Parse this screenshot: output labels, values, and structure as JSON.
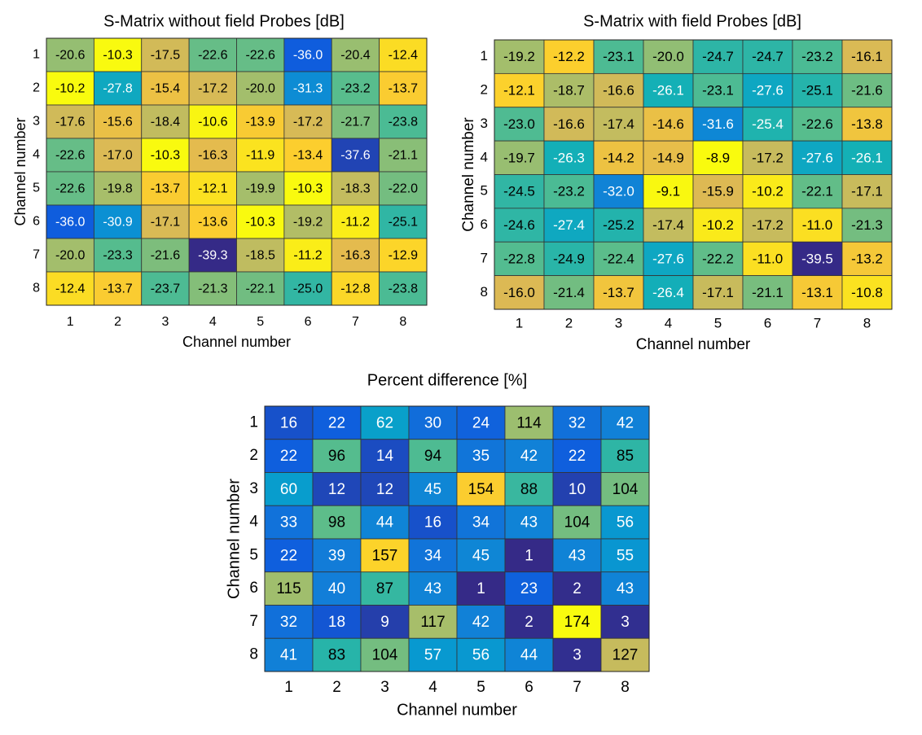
{
  "chart_data": [
    {
      "type": "heatmap",
      "title": "S-Matrix without field Probes [dB]",
      "xlabel": "Channel number",
      "ylabel": "Channel number",
      "x": [
        1,
        2,
        3,
        4,
        5,
        6,
        7,
        8
      ],
      "y": [
        1,
        2,
        3,
        4,
        5,
        6,
        7,
        8
      ],
      "colormap": [
        "#352a87",
        "#0f5cdd",
        "#127dd8",
        "#079ccf",
        "#15b1b4",
        "#59bd8c",
        "#a5be6b",
        "#e1b952",
        "#fcce2e",
        "#f9fb0e"
      ],
      "values": [
        [
          -20.6,
          -10.3,
          -17.5,
          -22.6,
          -22.6,
          -36.0,
          -20.4,
          -12.4
        ],
        [
          -10.2,
          -27.8,
          -15.4,
          -17.2,
          -20.0,
          -31.3,
          -23.2,
          -13.7
        ],
        [
          -17.6,
          -15.6,
          -18.4,
          -10.6,
          -13.9,
          -17.2,
          -21.7,
          -23.8
        ],
        [
          -22.6,
          -17.0,
          -10.3,
          -16.3,
          -11.9,
          -13.4,
          -37.6,
          -21.1
        ],
        [
          -22.6,
          -19.8,
          -13.7,
          -12.1,
          -19.9,
          -10.3,
          -18.3,
          -22.0
        ],
        [
          -36.0,
          -30.9,
          -17.1,
          -13.6,
          -10.3,
          -19.2,
          -11.2,
          -25.1
        ],
        [
          -20.0,
          -23.3,
          -21.6,
          -39.3,
          -18.5,
          -11.2,
          -16.3,
          -12.9
        ],
        [
          -12.4,
          -13.7,
          -23.7,
          -21.3,
          -22.1,
          -25.0,
          -12.8,
          -23.8
        ]
      ],
      "value_labels": [
        [
          "-20.6",
          "-10.3",
          "-17.5",
          "-22.6",
          "-22.6",
          "-36.0",
          "-20.4",
          "-12.4"
        ],
        [
          "-10.2",
          "-27.8",
          "-15.4",
          "-17.2",
          "-20.0",
          "-31.3",
          "-23.2",
          "-13.7"
        ],
        [
          "-17.6",
          "-15.6",
          "-18.4",
          "-10.6",
          "-13.9",
          "-17.2",
          "-21.7",
          "-23.8"
        ],
        [
          "-22.6",
          "-17.0",
          "-10.3",
          "-16.3",
          "-11.9",
          "-13.4",
          "-37.6",
          "-21.1"
        ],
        [
          "-22.6",
          "-19.8",
          "-13.7",
          "-12.1",
          "-19.9",
          "-10.3",
          "-18.3",
          "-22.0"
        ],
        [
          "-36.0",
          "-30.9",
          "-17.1",
          "-13.6",
          "-10.3",
          "-19.2",
          "-11.2",
          "-25.1"
        ],
        [
          "-20.0",
          "-23.3",
          "-21.6",
          "-39.3",
          "-18.5",
          "-11.2",
          "-16.3",
          "-12.9"
        ],
        [
          "-12.4",
          "-13.7",
          "-23.7",
          "-21.3",
          "-22.1",
          "-25.0",
          "-12.8",
          "-23.8"
        ]
      ]
    },
    {
      "type": "heatmap",
      "title": "S-Matrix with field Probes [dB]",
      "xlabel": "Channel number",
      "ylabel": "Channel number",
      "x": [
        1,
        2,
        3,
        4,
        5,
        6,
        7,
        8
      ],
      "y": [
        1,
        2,
        3,
        4,
        5,
        6,
        7,
        8
      ],
      "colormap": [
        "#352a87",
        "#0f5cdd",
        "#127dd8",
        "#079ccf",
        "#15b1b4",
        "#59bd8c",
        "#a5be6b",
        "#e1b952",
        "#fcce2e",
        "#f9fb0e"
      ],
      "values": [
        [
          -19.2,
          -12.2,
          -23.1,
          -20.0,
          -24.7,
          -24.7,
          -23.2,
          -16.1
        ],
        [
          -12.1,
          -18.7,
          -16.6,
          -26.1,
          -23.1,
          -27.6,
          -25.1,
          -21.6
        ],
        [
          -23.0,
          -16.6,
          -17.4,
          -14.6,
          -31.6,
          -25.4,
          -22.6,
          -13.8
        ],
        [
          -19.7,
          -26.3,
          -14.2,
          -14.9,
          -8.9,
          -17.2,
          -27.6,
          -26.1
        ],
        [
          -24.5,
          -23.2,
          -32.0,
          -9.1,
          -15.9,
          -10.2,
          -22.1,
          -17.1
        ],
        [
          -24.6,
          -27.4,
          -25.2,
          -17.4,
          -10.2,
          -17.2,
          -11.0,
          -21.3
        ],
        [
          -22.8,
          -24.9,
          -22.4,
          -27.6,
          -22.2,
          -11.0,
          -39.5,
          -13.2
        ],
        [
          -16.0,
          -21.4,
          -13.7,
          -26.4,
          -17.1,
          -21.1,
          -13.1,
          -10.8
        ]
      ],
      "value_labels": [
        [
          "-19.2",
          "-12.2",
          "-23.1",
          "-20.0",
          "-24.7",
          "-24.7",
          "-23.2",
          "-16.1"
        ],
        [
          "-12.1",
          "-18.7",
          "-16.6",
          "-26.1",
          "-23.1",
          "-27.6",
          "-25.1",
          "-21.6"
        ],
        [
          "-23.0",
          "-16.6",
          "-17.4",
          "-14.6",
          "-31.6",
          "-25.4",
          "-22.6",
          "-13.8"
        ],
        [
          "-19.7",
          "-26.3",
          "-14.2",
          "-14.9",
          "-8.9",
          "-17.2",
          "-27.6",
          "-26.1"
        ],
        [
          "-24.5",
          "-23.2",
          "-32.0",
          "-9.1",
          "-15.9",
          "-10.2",
          "-22.1",
          "-17.1"
        ],
        [
          "-24.6",
          "-27.4",
          "-25.2",
          "-17.4",
          "-10.2",
          "-17.2",
          "-11.0",
          "-21.3"
        ],
        [
          "-22.8",
          "-24.9",
          "-22.4",
          "-27.6",
          "-22.2",
          "-11.0",
          "-39.5",
          "-13.2"
        ],
        [
          "-16.0",
          "-21.4",
          "-13.7",
          "-26.4",
          "-17.1",
          "-21.1",
          "-13.1",
          "-10.8"
        ]
      ]
    },
    {
      "type": "heatmap",
      "title": "Percent difference [%]",
      "xlabel": "Channel number",
      "ylabel": "Channel number",
      "x": [
        1,
        2,
        3,
        4,
        5,
        6,
        7,
        8
      ],
      "y": [
        1,
        2,
        3,
        4,
        5,
        6,
        7,
        8
      ],
      "colormap": [
        "#352a87",
        "#0f5cdd",
        "#127dd8",
        "#079ccf",
        "#15b1b4",
        "#59bd8c",
        "#a5be6b",
        "#e1b952",
        "#fcce2e",
        "#f9fb0e"
      ],
      "values": [
        [
          16,
          22,
          62,
          30,
          24,
          114,
          32,
          42
        ],
        [
          22,
          96,
          14,
          94,
          35,
          42,
          22,
          85
        ],
        [
          60,
          12,
          12,
          45,
          154,
          88,
          10,
          104
        ],
        [
          33,
          98,
          44,
          16,
          34,
          43,
          104,
          56
        ],
        [
          22,
          39,
          157,
          34,
          45,
          1,
          43,
          55
        ],
        [
          115,
          40,
          87,
          43,
          1,
          23,
          2,
          43
        ],
        [
          32,
          18,
          9,
          117,
          42,
          2,
          174,
          3
        ],
        [
          41,
          83,
          104,
          57,
          56,
          44,
          3,
          127
        ]
      ]
    }
  ]
}
